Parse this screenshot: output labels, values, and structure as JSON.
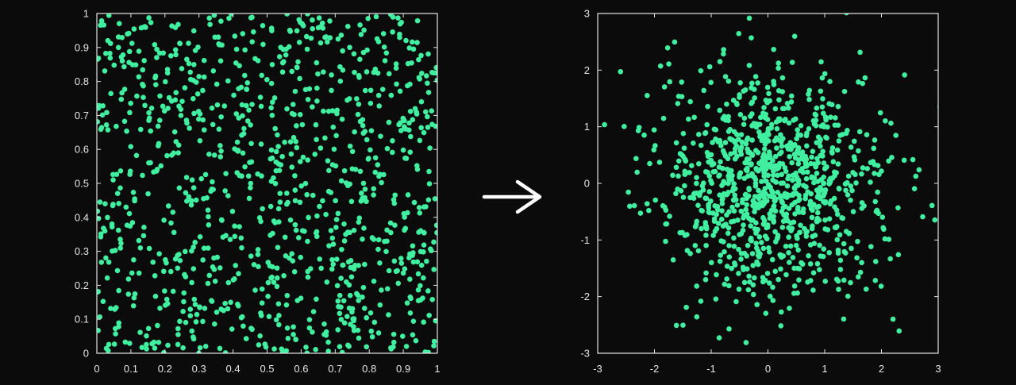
{
  "colors": {
    "background": "#0b0b0b",
    "axis": "#e6e6e6",
    "point": "#40f0a0",
    "arrow": "#ffffff"
  },
  "arrow_icon": "right-arrow-icon",
  "chart_data": [
    {
      "type": "scatter",
      "title": "",
      "xlabel": "",
      "ylabel": "",
      "xlim": [
        0,
        1
      ],
      "ylim": [
        0,
        1
      ],
      "xticks": [
        0,
        0.1,
        0.2,
        0.3,
        0.4,
        0.5,
        0.6,
        0.7,
        0.8,
        0.9,
        1
      ],
      "xtick_labels": [
        "0",
        "0.1",
        "0.2",
        "0.3",
        "0.4",
        "0.5",
        "0.6",
        "0.7",
        "0.8",
        "0.9",
        "1"
      ],
      "yticks": [
        0,
        0.1,
        0.2,
        0.3,
        0.4,
        0.5,
        0.6,
        0.7,
        0.8,
        0.9,
        1
      ],
      "ytick_labels": [
        "0",
        "0.1",
        "0.2",
        "0.3",
        "0.4",
        "0.5",
        "0.6",
        "0.7",
        "0.8",
        "0.9",
        "1"
      ],
      "grid": false,
      "legend": "none",
      "distribution": "uniform",
      "n_points": 1000,
      "seed": 12345,
      "points": []
    },
    {
      "type": "scatter",
      "title": "",
      "xlabel": "",
      "ylabel": "",
      "xlim": [
        -3,
        3
      ],
      "ylim": [
        -3,
        3
      ],
      "xticks": [
        -3,
        -2,
        -1,
        0,
        1,
        2,
        3
      ],
      "xtick_labels": [
        "-3",
        "-2",
        "-1",
        "0",
        "1",
        "2",
        "3"
      ],
      "yticks": [
        -3,
        -2,
        -1,
        0,
        1,
        2,
        3
      ],
      "ytick_labels": [
        "-3",
        "-2",
        "-1",
        "0",
        "1",
        "2",
        "3"
      ],
      "grid": false,
      "legend": "none",
      "distribution": "standard-normal",
      "n_points": 1000,
      "seed": 12345,
      "points": []
    }
  ]
}
